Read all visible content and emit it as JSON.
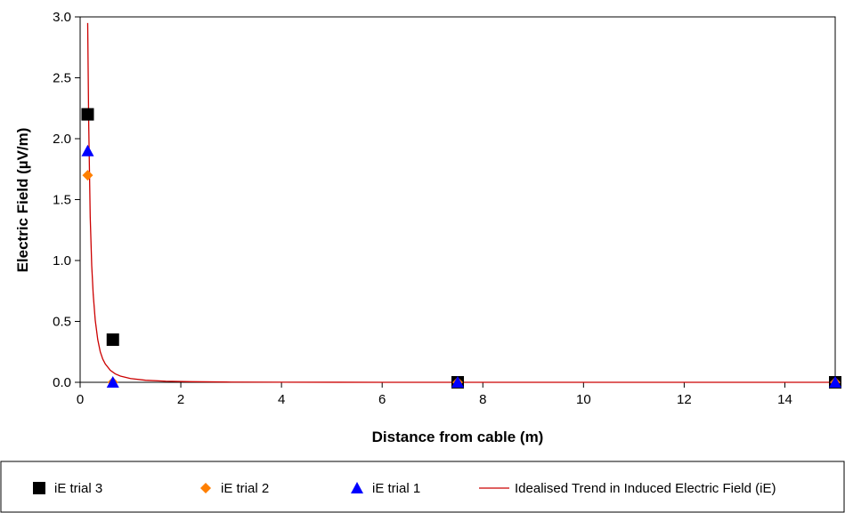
{
  "chart_data": {
    "type": "scatter",
    "xlabel": "Distance from cable (m)",
    "ylabel": "Electric Field (µV/m)",
    "xlim": [
      0,
      15
    ],
    "ylim": [
      0,
      3.0
    ],
    "x_ticks": [
      0,
      2,
      4,
      6,
      8,
      10,
      12,
      14
    ],
    "x_tick_labels": [
      "0",
      "2",
      "4",
      "6",
      "8",
      "10",
      "12",
      "14"
    ],
    "y_ticks": [
      0,
      0.5,
      1.0,
      1.5,
      2.0,
      2.5,
      3.0
    ],
    "y_tick_labels": [
      "0.0",
      "0.5",
      "1.0",
      "1.5",
      "2.0",
      "2.5",
      "3.0"
    ],
    "grid": false,
    "legend_position": "bottom",
    "series": [
      {
        "name": "iE trial 3",
        "marker": "square",
        "color": "#000000",
        "x": [
          0.15,
          0.65,
          7.5,
          15
        ],
        "y": [
          2.2,
          0.35,
          0.0,
          0.0
        ]
      },
      {
        "name": "iE trial 2",
        "marker": "diamond",
        "color": "#ff7f00",
        "x": [
          0.15,
          0.65,
          7.5,
          15
        ],
        "y": [
          1.7,
          0.0,
          0.0,
          0.0
        ]
      },
      {
        "name": "iE trial 1",
        "marker": "triangle",
        "color": "#0000ff",
        "x": [
          0.15,
          0.65,
          7.5,
          15
        ],
        "y": [
          1.9,
          0.0,
          0.0,
          0.0
        ]
      },
      {
        "name": "Idealised Trend in Induced Electric Field (iE)",
        "marker": "line",
        "color": "#cc0000",
        "x": [
          0.15,
          0.17,
          0.2,
          0.23,
          0.26,
          0.3,
          0.35,
          0.4,
          0.45,
          0.5,
          0.6,
          0.7,
          0.8,
          1.0,
          1.3,
          1.7,
          2.2,
          3,
          4,
          6,
          8,
          10,
          12,
          14,
          15
        ],
        "y": [
          2.95,
          2.13,
          1.36,
          0.96,
          0.72,
          0.51,
          0.35,
          0.25,
          0.19,
          0.15,
          0.098,
          0.069,
          0.051,
          0.031,
          0.017,
          0.009,
          0.005,
          0.002,
          0.001,
          0.0,
          0.0,
          0.0,
          0.0,
          0.0,
          0.0
        ]
      }
    ]
  }
}
